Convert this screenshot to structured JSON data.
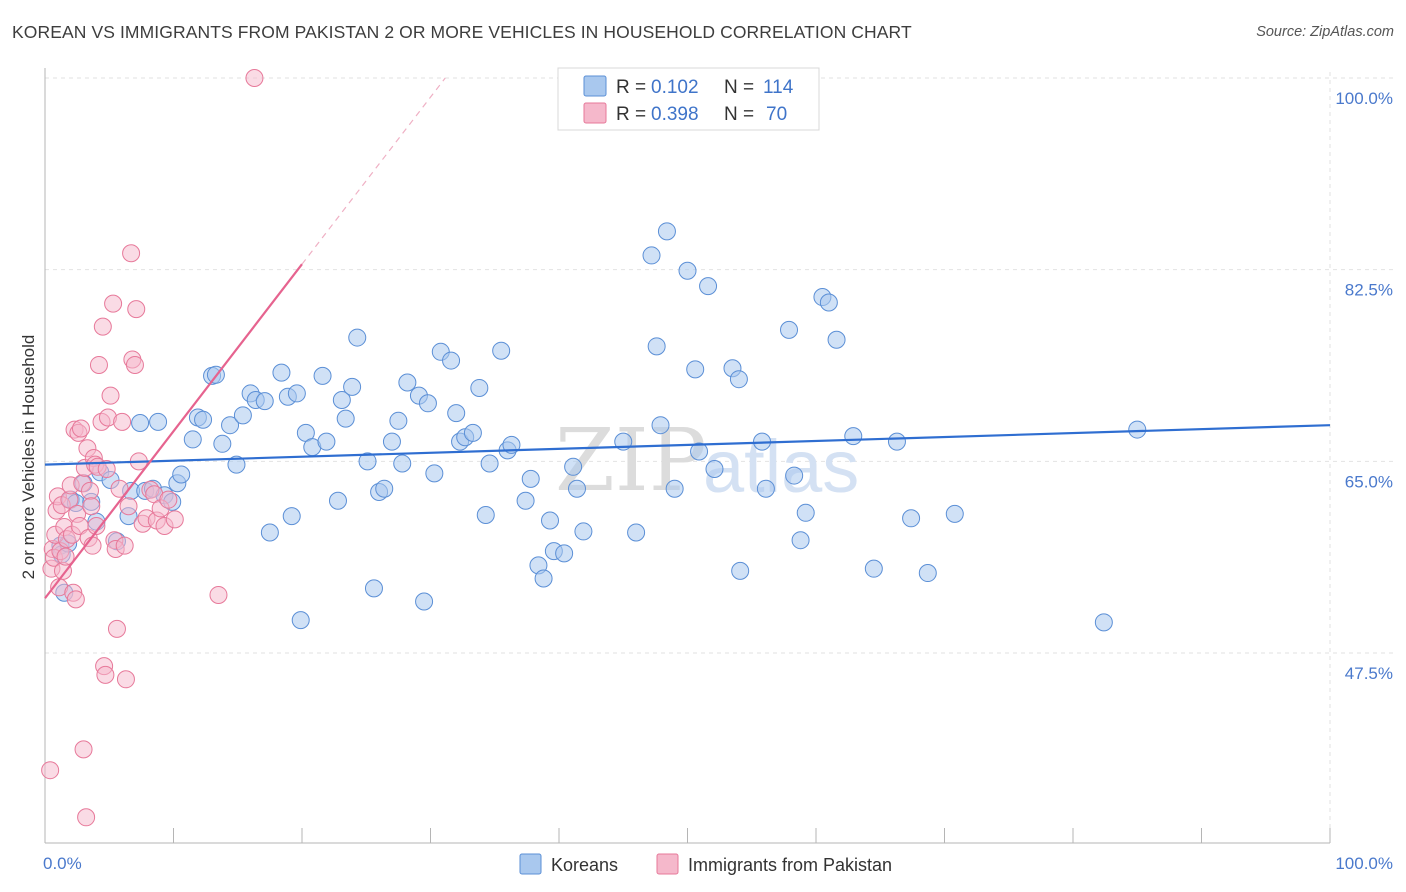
{
  "header": {
    "title": "KOREAN VS IMMIGRANTS FROM PAKISTAN 2 OR MORE VEHICLES IN HOUSEHOLD CORRELATION CHART",
    "source": "Source: ZipAtlas.com"
  },
  "watermark": {
    "zip": "ZIP",
    "atlas": "atlas"
  },
  "stats_box": {
    "rows": [
      {
        "r_label": "R =",
        "r_value": "0.102",
        "n_label": "N =",
        "n_value": "114",
        "color": "#a9c8ee"
      },
      {
        "r_label": "R =",
        "r_value": "0.398",
        "n_label": "N =",
        "n_value": "70",
        "color": "#f5b8cb"
      }
    ]
  },
  "colors": {
    "korean_fill": "#a9c8ee",
    "korean_stroke": "#5b8fd6",
    "korean_line": "#2f6ed1",
    "pakistan_fill": "#f5b8cb",
    "pakistan_stroke": "#e7799a",
    "pakistan_line": "#e6638f",
    "tick_label": "#4a79cc",
    "grid": "#e2e2e2"
  },
  "chart_data": {
    "type": "scatter",
    "title": "KOREAN VS IMMIGRANTS FROM PAKISTAN 2 OR MORE VEHICLES IN HOUSEHOLD CORRELATION CHART",
    "xlabel": "",
    "ylabel": "2 or more Vehicles in Household",
    "xlim": [
      0,
      100
    ],
    "ylim": [
      30,
      100
    ],
    "x_tick_labels": [
      {
        "value": 0,
        "label": "0.0%"
      },
      {
        "value": 100,
        "label": "100.0%"
      }
    ],
    "y_tick_labels": [
      {
        "value": 47.5,
        "label": "47.5%"
      },
      {
        "value": 65.0,
        "label": "65.0%"
      },
      {
        "value": 82.5,
        "label": "82.5%"
      },
      {
        "value": 100.0,
        "label": "100.0%"
      }
    ],
    "grid": true,
    "legend_position": "bottom-center",
    "series": [
      {
        "name": "Koreans",
        "r": 0.102,
        "n": 114,
        "trend": {
          "x": [
            0,
            100
          ],
          "y": [
            64.7,
            68.3
          ]
        },
        "points": [
          [
            1.2,
            57.3
          ],
          [
            1.5,
            53.0
          ],
          [
            1.3,
            56.5
          ],
          [
            1.8,
            57.5
          ],
          [
            2.0,
            61.5
          ],
          [
            2.4,
            61.2
          ],
          [
            3.0,
            63.0
          ],
          [
            3.6,
            61.3
          ],
          [
            4.0,
            59.5
          ],
          [
            4.3,
            64.0
          ],
          [
            5.1,
            63.3
          ],
          [
            5.6,
            57.7
          ],
          [
            6.5,
            60.0
          ],
          [
            6.7,
            62.3
          ],
          [
            7.4,
            68.5
          ],
          [
            7.8,
            62.3
          ],
          [
            8.4,
            62.5
          ],
          [
            8.8,
            68.6
          ],
          [
            9.3,
            61.9
          ],
          [
            9.9,
            61.3
          ],
          [
            10.3,
            63.0
          ],
          [
            10.6,
            63.8
          ],
          [
            11.5,
            67.0
          ],
          [
            11.9,
            69.0
          ],
          [
            12.3,
            68.8
          ],
          [
            13.0,
            72.8
          ],
          [
            13.3,
            72.9
          ],
          [
            13.8,
            66.6
          ],
          [
            14.4,
            68.3
          ],
          [
            14.9,
            64.7
          ],
          [
            15.4,
            69.2
          ],
          [
            16.0,
            71.2
          ],
          [
            16.4,
            70.6
          ],
          [
            17.1,
            70.5
          ],
          [
            17.5,
            58.5
          ],
          [
            18.4,
            73.1
          ],
          [
            18.9,
            70.9
          ],
          [
            19.2,
            60.0
          ],
          [
            19.6,
            71.2
          ],
          [
            19.9,
            50.5
          ],
          [
            20.3,
            67.6
          ],
          [
            20.8,
            66.3
          ],
          [
            21.6,
            72.8
          ],
          [
            21.9,
            66.8
          ],
          [
            22.8,
            61.4
          ],
          [
            23.1,
            70.6
          ],
          [
            23.4,
            68.9
          ],
          [
            23.9,
            71.8
          ],
          [
            24.3,
            76.3
          ],
          [
            25.1,
            65.0
          ],
          [
            25.6,
            53.4
          ],
          [
            26.0,
            62.2
          ],
          [
            26.4,
            62.5
          ],
          [
            27.0,
            66.8
          ],
          [
            27.5,
            68.7
          ],
          [
            27.8,
            64.8
          ],
          [
            28.2,
            72.2
          ],
          [
            29.1,
            71.0
          ],
          [
            29.5,
            52.2
          ],
          [
            29.8,
            70.3
          ],
          [
            30.3,
            63.9
          ],
          [
            30.8,
            75.0
          ],
          [
            31.6,
            74.2
          ],
          [
            32.0,
            69.4
          ],
          [
            32.3,
            66.8
          ],
          [
            32.7,
            67.2
          ],
          [
            33.3,
            67.6
          ],
          [
            33.8,
            71.7
          ],
          [
            34.3,
            60.1
          ],
          [
            34.6,
            64.8
          ],
          [
            35.5,
            75.1
          ],
          [
            36.0,
            66.0
          ],
          [
            36.3,
            66.5
          ],
          [
            37.4,
            61.4
          ],
          [
            37.8,
            63.4
          ],
          [
            38.4,
            55.5
          ],
          [
            38.8,
            54.3
          ],
          [
            39.3,
            59.6
          ],
          [
            39.6,
            56.8
          ],
          [
            40.4,
            56.6
          ],
          [
            41.1,
            64.5
          ],
          [
            41.4,
            62.5
          ],
          [
            41.9,
            58.6
          ],
          [
            45.0,
            66.8
          ],
          [
            46.0,
            58.5
          ],
          [
            47.2,
            83.8
          ],
          [
            47.6,
            75.5
          ],
          [
            47.9,
            68.3
          ],
          [
            48.4,
            86.0
          ],
          [
            49.0,
            62.5
          ],
          [
            50.0,
            82.4
          ],
          [
            50.6,
            73.4
          ],
          [
            50.9,
            65.9
          ],
          [
            51.6,
            81.0
          ],
          [
            52.1,
            64.3
          ],
          [
            53.5,
            73.5
          ],
          [
            54.0,
            72.5
          ],
          [
            54.1,
            55.0
          ],
          [
            55.8,
            66.8
          ],
          [
            56.1,
            62.5
          ],
          [
            57.9,
            77.0
          ],
          [
            58.3,
            63.7
          ],
          [
            58.8,
            57.8
          ],
          [
            59.2,
            60.3
          ],
          [
            60.5,
            80.0
          ],
          [
            61.0,
            79.5
          ],
          [
            61.6,
            76.1
          ],
          [
            62.9,
            67.3
          ],
          [
            64.5,
            55.2
          ],
          [
            66.3,
            66.8
          ],
          [
            67.4,
            59.8
          ],
          [
            68.7,
            54.8
          ],
          [
            70.8,
            60.2
          ],
          [
            82.4,
            50.3
          ],
          [
            85.0,
            67.9
          ]
        ]
      },
      {
        "name": "Immigrants from Pakistan",
        "r": 0.398,
        "n": 70,
        "trend": {
          "x": [
            0,
            20
          ],
          "y": [
            52.5,
            83.0
          ]
        },
        "points": [
          [
            0.4,
            36.8
          ],
          [
            0.5,
            55.2
          ],
          [
            0.6,
            57.0
          ],
          [
            0.7,
            56.2
          ],
          [
            0.8,
            58.3
          ],
          [
            0.9,
            60.5
          ],
          [
            1.0,
            61.8
          ],
          [
            1.1,
            53.5
          ],
          [
            1.2,
            56.8
          ],
          [
            1.3,
            61.0
          ],
          [
            1.4,
            55.0
          ],
          [
            1.5,
            59.0
          ],
          [
            1.6,
            56.3
          ],
          [
            1.7,
            57.9
          ],
          [
            1.9,
            61.5
          ],
          [
            2.0,
            62.8
          ],
          [
            2.1,
            58.3
          ],
          [
            2.2,
            53.0
          ],
          [
            2.3,
            67.9
          ],
          [
            2.4,
            52.4
          ],
          [
            2.5,
            60.2
          ],
          [
            2.6,
            67.6
          ],
          [
            2.7,
            59.1
          ],
          [
            2.8,
            68.0
          ],
          [
            2.9,
            63.0
          ],
          [
            3.0,
            38.7
          ],
          [
            3.1,
            64.4
          ],
          [
            3.2,
            32.5
          ],
          [
            3.3,
            66.2
          ],
          [
            3.4,
            58.0
          ],
          [
            3.5,
            62.3
          ],
          [
            3.6,
            60.9
          ],
          [
            3.7,
            57.3
          ],
          [
            3.8,
            65.3
          ],
          [
            3.9,
            64.7
          ],
          [
            4.0,
            59.1
          ],
          [
            4.1,
            64.5
          ],
          [
            4.2,
            73.8
          ],
          [
            4.4,
            68.6
          ],
          [
            4.5,
            77.3
          ],
          [
            4.6,
            46.3
          ],
          [
            4.7,
            45.5
          ],
          [
            4.8,
            64.3
          ],
          [
            4.9,
            69.0
          ],
          [
            5.1,
            71.0
          ],
          [
            5.3,
            79.4
          ],
          [
            5.4,
            57.8
          ],
          [
            5.5,
            57.0
          ],
          [
            5.6,
            49.7
          ],
          [
            5.8,
            62.5
          ],
          [
            6.0,
            68.6
          ],
          [
            6.2,
            57.3
          ],
          [
            6.3,
            45.1
          ],
          [
            6.5,
            60.9
          ],
          [
            6.7,
            84.0
          ],
          [
            6.8,
            74.3
          ],
          [
            7.0,
            73.8
          ],
          [
            7.1,
            78.9
          ],
          [
            7.3,
            65.0
          ],
          [
            7.6,
            59.3
          ],
          [
            7.9,
            59.8
          ],
          [
            8.2,
            62.4
          ],
          [
            8.5,
            62.0
          ],
          [
            8.7,
            59.6
          ],
          [
            9.0,
            60.7
          ],
          [
            9.3,
            59.1
          ],
          [
            9.6,
            61.5
          ],
          [
            10.1,
            59.7
          ],
          [
            13.5,
            52.8
          ],
          [
            16.3,
            100.0
          ]
        ]
      }
    ]
  },
  "legend": {
    "items": [
      {
        "label": "Koreans",
        "color": "#a9c8ee"
      },
      {
        "label": "Immigrants from Pakistan",
        "color": "#f5b8cb"
      }
    ]
  }
}
